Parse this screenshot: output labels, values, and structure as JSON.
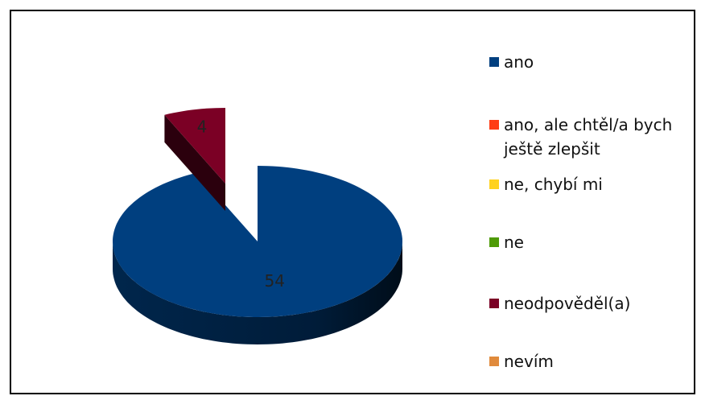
{
  "chart_data": {
    "type": "pie",
    "categories": [
      "ano",
      "ano, ale chtěl/a bych ještě zlepšit",
      "ne, chybí mi",
      "ne",
      "neodpověděl(a)",
      "nevím"
    ],
    "values": [
      54,
      0,
      0,
      0,
      4,
      0
    ],
    "colors": [
      "#003f7f",
      "#ff3c14",
      "#ffd21e",
      "#4e9a06",
      "#7b0025",
      "#e08a3c"
    ],
    "legend": "right"
  }
}
